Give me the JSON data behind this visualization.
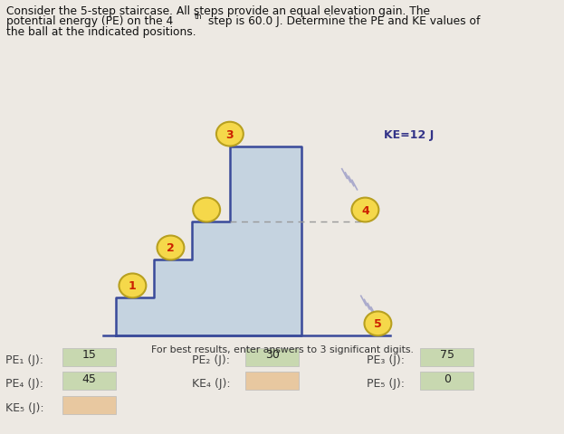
{
  "bg_color": "#ede9e3",
  "stair_fill": "#c5d3e0",
  "stair_edge": "#3a4a9a",
  "ball_fill": "#f5d84a",
  "ball_edge": "#b8a020",
  "ball_number_color": "#cc2000",
  "ke_label": "KE=12 J",
  "ke_label_color": "#333388",
  "dashed_line_color": "#999999",
  "subtitle": "For best results, enter answers to 3 significant digits.",
  "title_line1": "Consider the 5-step staircase. All steps provide an equal elevation gain. The",
  "title_line2a": "potential energy (PE) on the 4",
  "title_line2b": "th",
  "title_line2c": " step is 60.0 J. Determine the PE and KE values of",
  "title_line3": "the ball at the indicated positions.",
  "answer_rows": [
    [
      {
        "label": "PE₁ (J):",
        "value": "15",
        "filled": true,
        "green": true
      },
      {
        "label": "PE₂ (J):",
        "value": "30",
        "filled": true,
        "green": true
      },
      {
        "label": "PE₃ (J):",
        "value": "75",
        "filled": true,
        "green": true
      }
    ],
    [
      {
        "label": "PE₄ (J):",
        "value": "45",
        "filled": true,
        "green": true
      },
      {
        "label": "KE₄ (J):",
        "value": "",
        "filled": true,
        "green": false
      },
      {
        "label": "PE₅ (J):",
        "value": "0",
        "filled": true,
        "green": true
      }
    ],
    [
      {
        "label": "KE₅ (J):",
        "value": "",
        "filled": true,
        "green": false
      },
      {
        "label": "",
        "value": "",
        "filled": false,
        "green": false
      },
      {
        "label": "",
        "value": "",
        "filled": false,
        "green": false
      }
    ]
  ],
  "green_box_color": "#c8d8b0",
  "orange_box_color": "#e8c8a0"
}
